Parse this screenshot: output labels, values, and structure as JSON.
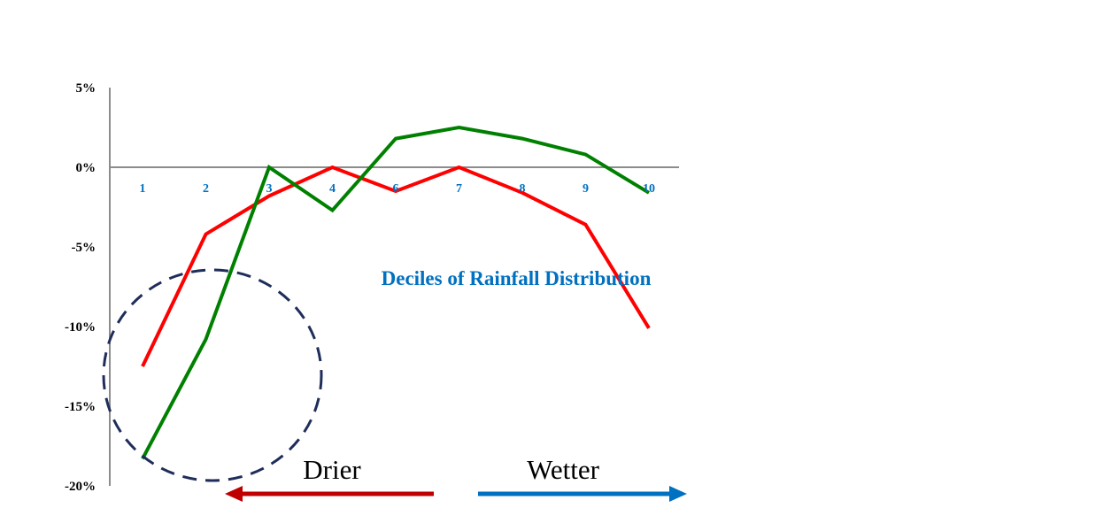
{
  "chart_data": {
    "type": "line",
    "title": "",
    "xlabel": "Deciles of Rainfall Distribution",
    "ylabel": "",
    "categories": [
      "1",
      "2",
      "3",
      "4",
      "6",
      "7",
      "8",
      "9",
      "10"
    ],
    "x": [
      1,
      2,
      3,
      4,
      5,
      6,
      7,
      8,
      9
    ],
    "ylim": [
      -20,
      5
    ],
    "yticks": [
      5,
      0,
      -5,
      -10,
      -15,
      -20
    ],
    "ytick_labels": [
      "5%",
      "0%",
      "-5%",
      "-10%",
      "-15%",
      "-20%"
    ],
    "grid": false,
    "series": [
      {
        "values": [
          -12.5,
          -4.2,
          -1.8,
          0.0,
          -1.5,
          0.0,
          -1.6,
          -3.6,
          -10.1
        ],
        "color": "#FF0000"
      },
      {
        "values": [
          -18.3,
          -10.8,
          0.0,
          -2.7,
          1.8,
          2.5,
          1.8,
          0.8,
          -1.6
        ],
        "color": "#008000"
      }
    ],
    "series_colors_note_order": [
      "green",
      "red"
    ],
    "annotations": {
      "drier_label": "Drier",
      "wetter_label": "Wetter",
      "drier_color": "#C00000",
      "wetter_color": "#0070C0",
      "xtitle_color": "#0070C0",
      "circle_color": "#1F2D5A"
    }
  }
}
